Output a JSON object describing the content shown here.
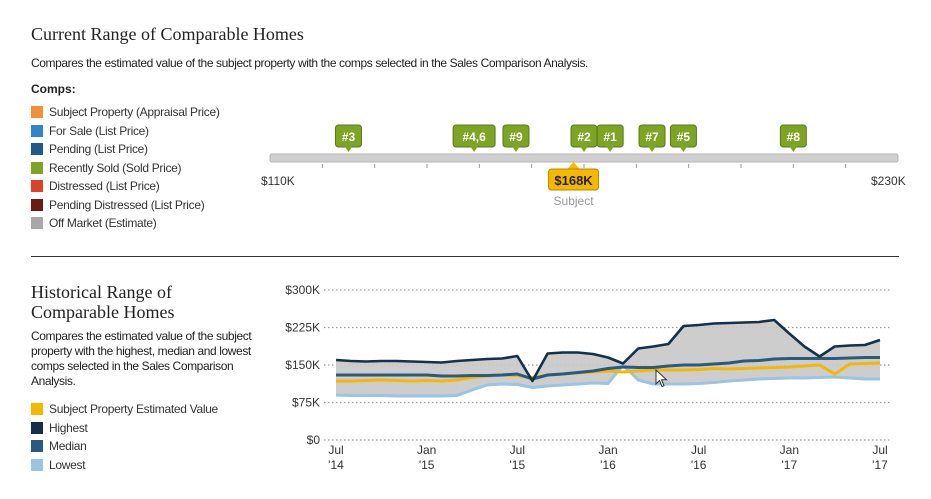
{
  "current": {
    "title": "Current Range of Comparable Homes",
    "description": "Compares the estimated value of the subject property with the comps selected in the Sales Comparison Analysis.",
    "comps_label": "Comps:",
    "legend": [
      {
        "label": "Subject Property (Appraisal Price)",
        "color": "#f0913a"
      },
      {
        "label": "For Sale (List Price)",
        "color": "#2f87c8"
      },
      {
        "label": "Pending (List Price)",
        "color": "#1e5a8a"
      },
      {
        "label": "Recently Sold (Sold Price)",
        "color": "#7ea426"
      },
      {
        "label": "Distressed (List Price)",
        "color": "#d9432a"
      },
      {
        "label": "Pending Distressed (List Price)",
        "color": "#6b1a14"
      },
      {
        "label": "Off Market (Estimate)",
        "color": "#a8a8a8"
      }
    ],
    "range_min_label": "$110K",
    "range_max_label": "$230K",
    "subject_label": "Subject",
    "subject_value_label": "$168K"
  },
  "historical": {
    "title": "Historical Range of Comparable Homes",
    "description": "Compares the estimated value of the subject property with the highest, median and lowest comps selected in the Sales Comparison Analysis.",
    "legend": [
      {
        "label": "Subject Property Estimated Value",
        "color": "#f5b800"
      },
      {
        "label": "Highest",
        "color": "#14304a"
      },
      {
        "label": "Median",
        "color": "#2b5a80"
      },
      {
        "label": "Lowest",
        "color": "#9cc3e2"
      }
    ]
  },
  "chart_data": [
    {
      "type": "scatter",
      "xlim": [
        110,
        230
      ],
      "x_unit": "$K",
      "range_labels": [
        "$110K",
        "$230K"
      ],
      "subject": {
        "label": "Subject",
        "value": 168,
        "value_label": "$168K",
        "color": "#f5b800"
      },
      "comps": [
        {
          "label": "#3",
          "value": 125
        },
        {
          "label": "#4,6",
          "value": 149
        },
        {
          "label": "#9",
          "value": 157
        },
        {
          "label": "#2",
          "value": 170
        },
        {
          "label": "#1",
          "value": 175
        },
        {
          "label": "#7",
          "value": 183
        },
        {
          "label": "#5",
          "value": 189
        },
        {
          "label": "#8",
          "value": 210
        }
      ],
      "comp_color": "#7ea426"
    },
    {
      "type": "line",
      "ylim": [
        0,
        300
      ],
      "y_ticks": [
        0,
        75,
        150,
        225,
        300
      ],
      "y_tick_labels": [
        "$0",
        "$75K",
        "$150K",
        "$225K",
        "$300K"
      ],
      "x_ticks": [
        {
          "date": "2014-07",
          "line1": "Jul",
          "line2": "'14"
        },
        {
          "date": "2015-01",
          "line1": "Jan",
          "line2": "'15"
        },
        {
          "date": "2015-07",
          "line1": "Jul",
          "line2": "'15"
        },
        {
          "date": "2016-01",
          "line1": "Jan",
          "line2": "'16"
        },
        {
          "date": "2016-07",
          "line1": "Jul",
          "line2": "'16"
        },
        {
          "date": "2017-01",
          "line1": "Jan",
          "line2": "'17"
        },
        {
          "date": "2017-07",
          "line1": "Jul",
          "line2": "'17"
        }
      ],
      "grid": true,
      "x": [
        "2014-07",
        "2014-08",
        "2014-09",
        "2014-10",
        "2014-11",
        "2014-12",
        "2015-01",
        "2015-02",
        "2015-03",
        "2015-04",
        "2015-05",
        "2015-06",
        "2015-07",
        "2015-08",
        "2015-09",
        "2015-10",
        "2015-11",
        "2015-12",
        "2016-01",
        "2016-02",
        "2016-03",
        "2016-04",
        "2016-05",
        "2016-06",
        "2016-07",
        "2016-08",
        "2016-09",
        "2016-10",
        "2016-11",
        "2016-12",
        "2017-01",
        "2017-02",
        "2017-03",
        "2017-04",
        "2017-05",
        "2017-06",
        "2017-07"
      ],
      "series": [
        {
          "name": "Subject Property Estimated Value",
          "color": "#f5b800",
          "values": [
            118,
            118,
            119,
            120,
            119,
            118,
            119,
            118,
            120,
            125,
            128,
            130,
            129,
            125,
            130,
            132,
            134,
            136,
            138,
            136,
            138,
            140,
            140,
            140,
            141,
            143,
            142,
            143,
            144,
            145,
            146,
            148,
            150,
            132,
            152,
            153,
            154
          ]
        },
        {
          "name": "Highest",
          "color": "#14304a",
          "values": [
            160,
            158,
            157,
            158,
            158,
            157,
            156,
            155,
            158,
            160,
            162,
            163,
            168,
            118,
            173,
            175,
            175,
            172,
            165,
            153,
            183,
            187,
            192,
            228,
            230,
            233,
            234,
            235,
            236,
            240,
            213,
            187,
            167,
            187,
            189,
            190,
            200
          ]
        },
        {
          "name": "Median",
          "color": "#2b5a80",
          "values": [
            130,
            130,
            130,
            130,
            130,
            130,
            130,
            128,
            128,
            129,
            129,
            130,
            132,
            122,
            130,
            132,
            135,
            138,
            143,
            146,
            145,
            145,
            148,
            150,
            150,
            152,
            154,
            158,
            159,
            162,
            163,
            163,
            163,
            163,
            164,
            165,
            165
          ]
        },
        {
          "name": "Lowest",
          "color": "#9cc3e2",
          "values": [
            90,
            89,
            89,
            89,
            88,
            88,
            88,
            88,
            89,
            100,
            110,
            112,
            111,
            105,
            108,
            110,
            112,
            114,
            113,
            150,
            120,
            112,
            112,
            112,
            113,
            115,
            118,
            120,
            122,
            123,
            124,
            124,
            125,
            126,
            124,
            122,
            122
          ]
        }
      ],
      "band_color": "#c8c8c8"
    }
  ]
}
